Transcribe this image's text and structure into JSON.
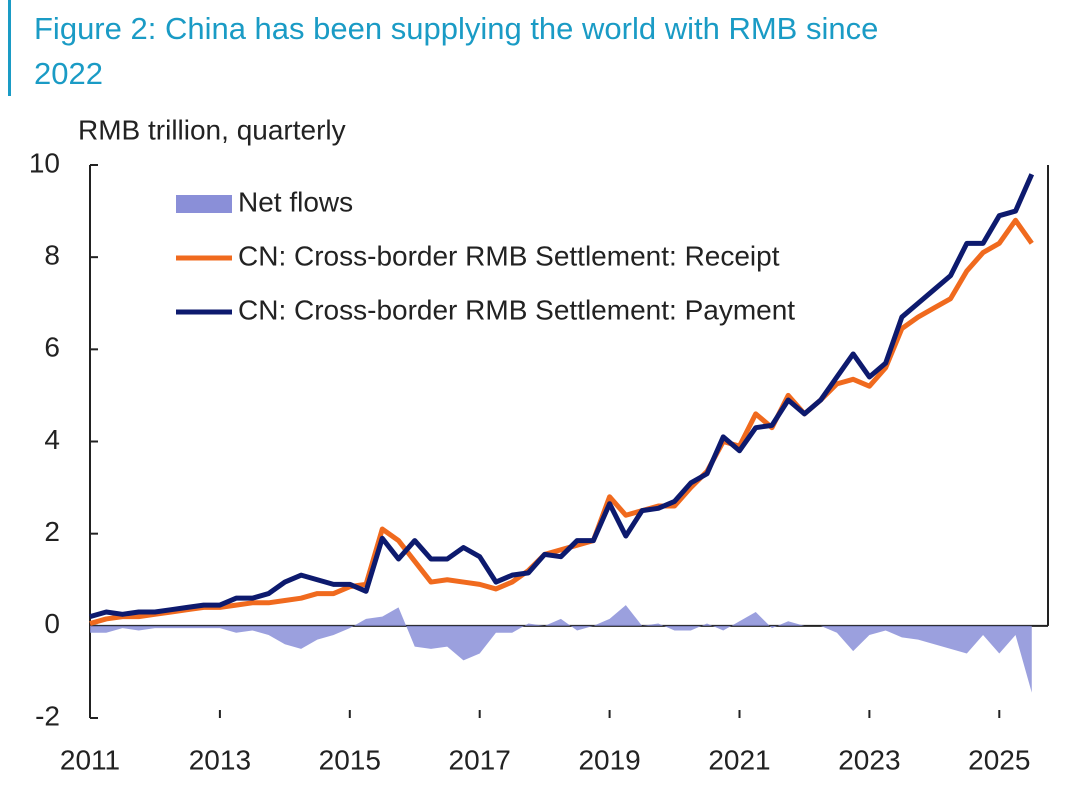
{
  "chart_data": {
    "type": "line",
    "title_lines": [
      "Figure 2: China has been supplying the world with RMB since",
      "2022"
    ],
    "y_label": "RMB trillion, quarterly",
    "x": [
      2011,
      2011.25,
      2011.5,
      2011.75,
      2012,
      2012.25,
      2012.5,
      2012.75,
      2013,
      2013.25,
      2013.5,
      2013.75,
      2014,
      2014.25,
      2014.5,
      2014.75,
      2015,
      2015.25,
      2015.5,
      2015.75,
      2016,
      2016.25,
      2016.5,
      2016.75,
      2017,
      2017.25,
      2017.5,
      2017.75,
      2018,
      2018.25,
      2018.5,
      2018.75,
      2019,
      2019.25,
      2019.5,
      2019.75,
      2020,
      2020.25,
      2020.5,
      2020.75,
      2021,
      2021.25,
      2021.5,
      2021.75,
      2022,
      2022.25,
      2022.5,
      2022.75,
      2023,
      2023.25,
      2023.5,
      2023.75,
      2024,
      2024.25,
      2024.5,
      2024.75,
      2025,
      2025.25,
      2025.5
    ],
    "series": [
      {
        "name": "Net flows",
        "color": "#8a8fd8",
        "kind": "area",
        "values": [
          -0.15,
          -0.15,
          -0.05,
          -0.1,
          -0.05,
          -0.05,
          -0.05,
          -0.05,
          -0.05,
          -0.15,
          -0.1,
          -0.2,
          -0.4,
          -0.5,
          -0.3,
          -0.2,
          -0.05,
          0.15,
          0.2,
          0.4,
          -0.45,
          -0.5,
          -0.45,
          -0.75,
          -0.6,
          -0.15,
          -0.15,
          0.05,
          0,
          0.15,
          -0.1,
          0,
          0.15,
          0.45,
          0,
          0.05,
          -0.1,
          -0.1,
          0.05,
          -0.1,
          0.1,
          0.3,
          -0.05,
          0.1,
          0,
          0,
          -0.15,
          -0.55,
          -0.2,
          -0.1,
          -0.25,
          -0.3,
          -0.4,
          -0.5,
          -0.6,
          -0.2,
          -0.6,
          -0.2,
          -1.45
        ]
      },
      {
        "name": "CN: Cross-border RMB Settlement: Receipt",
        "color": "#f06a1e",
        "kind": "line",
        "values": [
          0.05,
          0.15,
          0.2,
          0.2,
          0.25,
          0.3,
          0.35,
          0.4,
          0.4,
          0.45,
          0.5,
          0.5,
          0.55,
          0.6,
          0.7,
          0.7,
          0.85,
          0.9,
          2.1,
          1.85,
          1.4,
          0.95,
          1,
          0.95,
          0.9,
          0.8,
          0.95,
          1.2,
          1.55,
          1.65,
          1.75,
          1.85,
          2.8,
          2.4,
          2.5,
          2.6,
          2.6,
          3,
          3.35,
          4,
          3.9,
          4.6,
          4.3,
          5,
          4.6,
          4.9,
          5.25,
          5.35,
          5.2,
          5.6,
          6.45,
          6.7,
          6.9,
          7.1,
          7.7,
          8.1,
          8.3,
          8.8,
          8.3
        ]
      },
      {
        "name": "CN: Cross-border RMB Settlement: Payment",
        "color": "#0d1a6e",
        "kind": "line",
        "values": [
          0.2,
          0.3,
          0.25,
          0.3,
          0.3,
          0.35,
          0.4,
          0.45,
          0.45,
          0.6,
          0.6,
          0.7,
          0.95,
          1.1,
          1,
          0.9,
          0.9,
          0.75,
          1.9,
          1.45,
          1.85,
          1.45,
          1.45,
          1.7,
          1.5,
          0.95,
          1.1,
          1.15,
          1.55,
          1.5,
          1.85,
          1.85,
          2.65,
          1.95,
          2.5,
          2.55,
          2.7,
          3.1,
          3.3,
          4.1,
          3.8,
          4.3,
          4.35,
          4.9,
          4.6,
          4.9,
          5.4,
          5.9,
          5.4,
          5.7,
          6.7,
          7,
          7.3,
          7.6,
          8.3,
          8.3,
          8.9,
          9,
          9.8
        ]
      }
    ],
    "xlim": [
      2011,
      2025.75
    ],
    "xticks": [
      2011,
      2013,
      2015,
      2017,
      2019,
      2021,
      2023,
      2025
    ],
    "ylim": [
      -2,
      10
    ],
    "yticks": [
      -2,
      0,
      2,
      4,
      6,
      8,
      10
    ]
  }
}
